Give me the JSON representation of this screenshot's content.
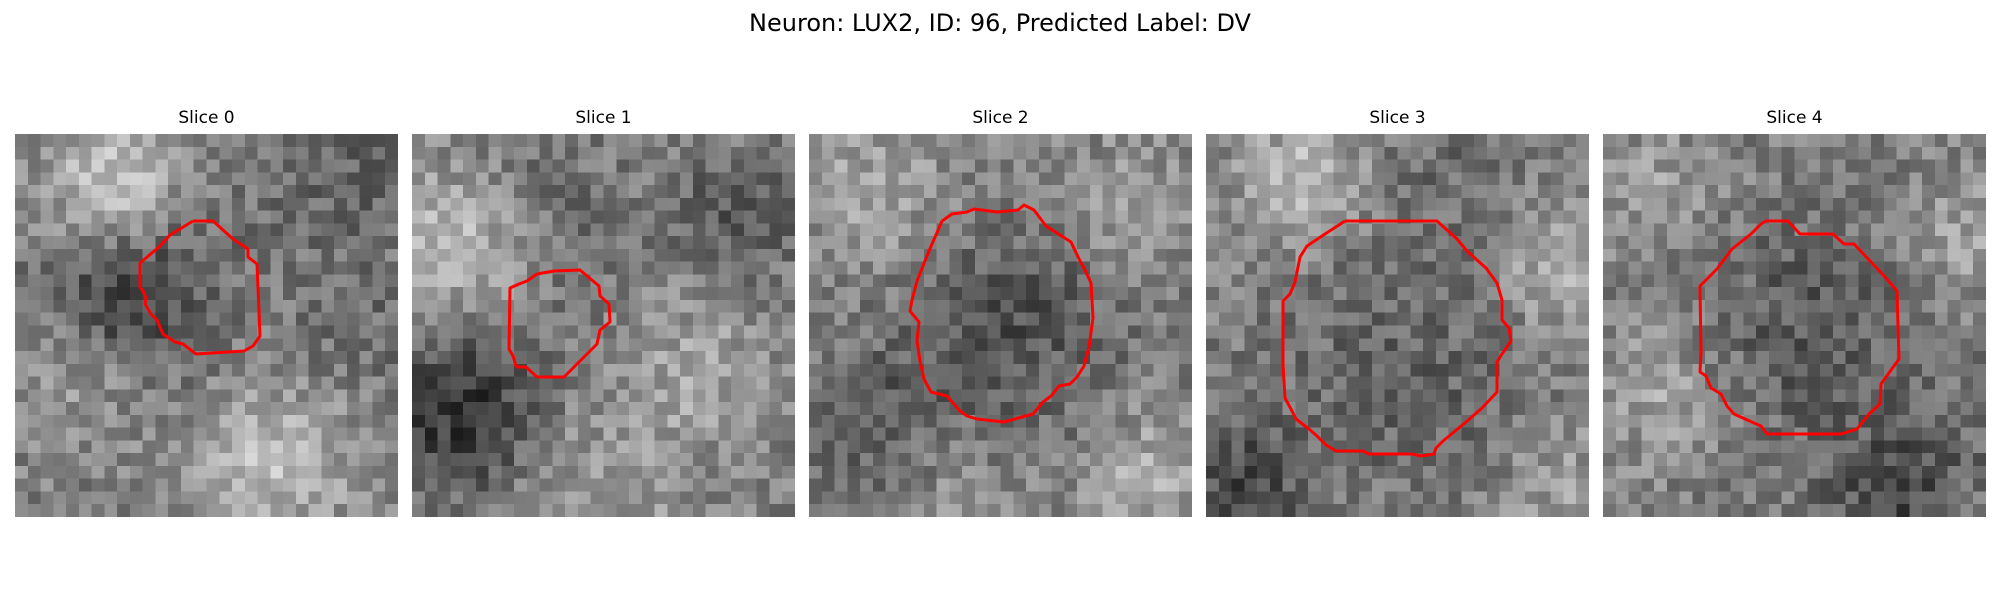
{
  "figure": {
    "title": "Neuron: LUX2, ID: 96, Predicted Label: DV",
    "contour_color": "#ff0000",
    "slices": [
      {
        "label": "Slice 0"
      },
      {
        "label": "Slice 1"
      },
      {
        "label": "Slice 2"
      },
      {
        "label": "Slice 3"
      },
      {
        "label": "Slice 4"
      }
    ]
  }
}
